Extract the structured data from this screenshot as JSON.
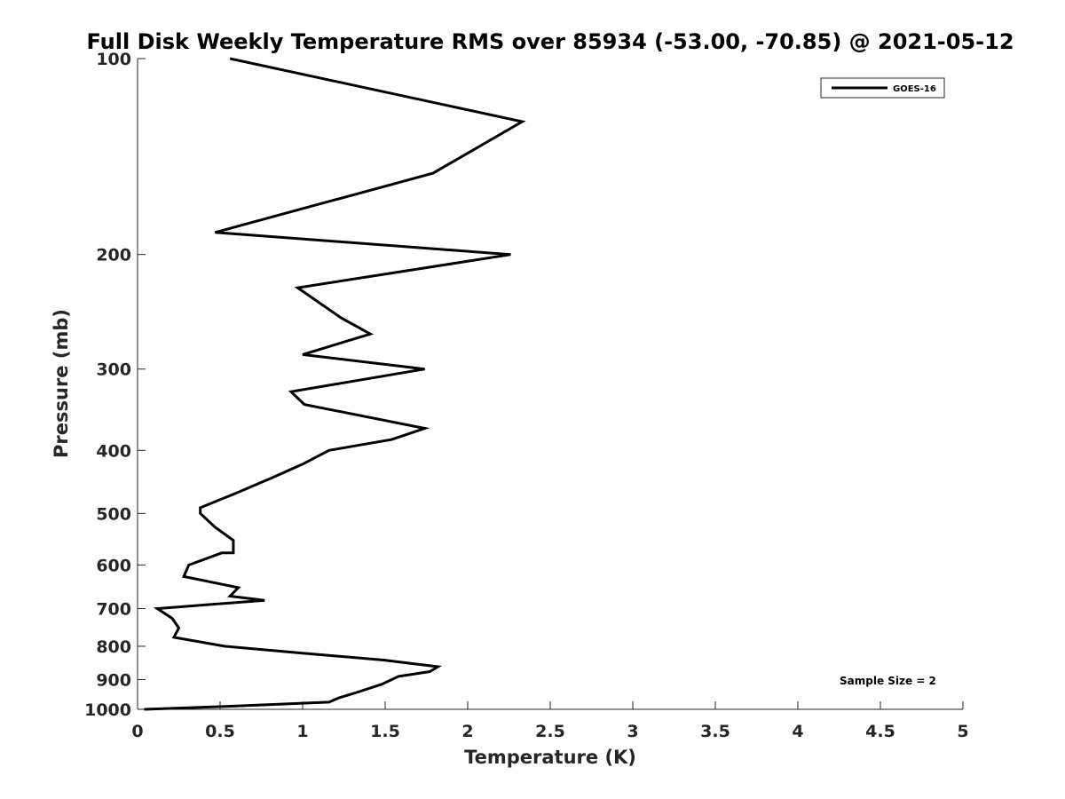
{
  "chart_data": {
    "type": "line",
    "title": "Full Disk Weekly Temperature RMS over 85934 (-53.00, -70.85) @ 2021-05-12",
    "xlabel": "Temperature (K)",
    "ylabel": "Pressure (mb)",
    "xlim": [
      0,
      5
    ],
    "ylim": [
      100,
      1000
    ],
    "y_scale": "log",
    "y_reversed": true,
    "x_ticks": [
      "0",
      "0.5",
      "1",
      "1.5",
      "2",
      "2.5",
      "3",
      "3.5",
      "4",
      "4.5",
      "5"
    ],
    "y_ticks": [
      "100",
      "200",
      "300",
      "400",
      "500",
      "600",
      "700",
      "800",
      "900",
      "1000"
    ],
    "grid": false,
    "legend_position": "top-right",
    "annotation": "Sample Size = 2",
    "series": [
      {
        "name": "GOES-16",
        "color": "#000000",
        "points": [
          [
            0.56,
            100
          ],
          [
            2.33,
            125
          ],
          [
            1.79,
            150
          ],
          [
            0.82,
            175
          ],
          [
            0.47,
            185
          ],
          [
            2.26,
            200
          ],
          [
            0.97,
            225
          ],
          [
            1.23,
            250
          ],
          [
            1.41,
            265
          ],
          [
            1.0,
            285
          ],
          [
            1.74,
            300
          ],
          [
            0.93,
            325
          ],
          [
            1.01,
            340
          ],
          [
            1.74,
            370
          ],
          [
            1.54,
            385
          ],
          [
            1.16,
            400
          ],
          [
            1.0,
            420
          ],
          [
            0.82,
            440
          ],
          [
            0.6,
            465
          ],
          [
            0.38,
            490
          ],
          [
            0.38,
            500
          ],
          [
            0.47,
            525
          ],
          [
            0.58,
            550
          ],
          [
            0.58,
            575
          ],
          [
            0.51,
            575
          ],
          [
            0.31,
            600
          ],
          [
            0.28,
            625
          ],
          [
            0.61,
            650
          ],
          [
            0.56,
            670
          ],
          [
            0.77,
            680
          ],
          [
            0.12,
            700
          ],
          [
            0.21,
            725
          ],
          [
            0.25,
            750
          ],
          [
            0.22,
            775
          ],
          [
            0.53,
            800
          ],
          [
            1.0,
            820
          ],
          [
            1.49,
            840
          ],
          [
            1.82,
            860
          ],
          [
            1.77,
            875
          ],
          [
            1.58,
            890
          ],
          [
            1.48,
            915
          ],
          [
            1.31,
            945
          ],
          [
            1.22,
            960
          ],
          [
            1.16,
            975
          ],
          [
            0.53,
            990
          ],
          [
            0.04,
            1000
          ]
        ]
      }
    ]
  }
}
